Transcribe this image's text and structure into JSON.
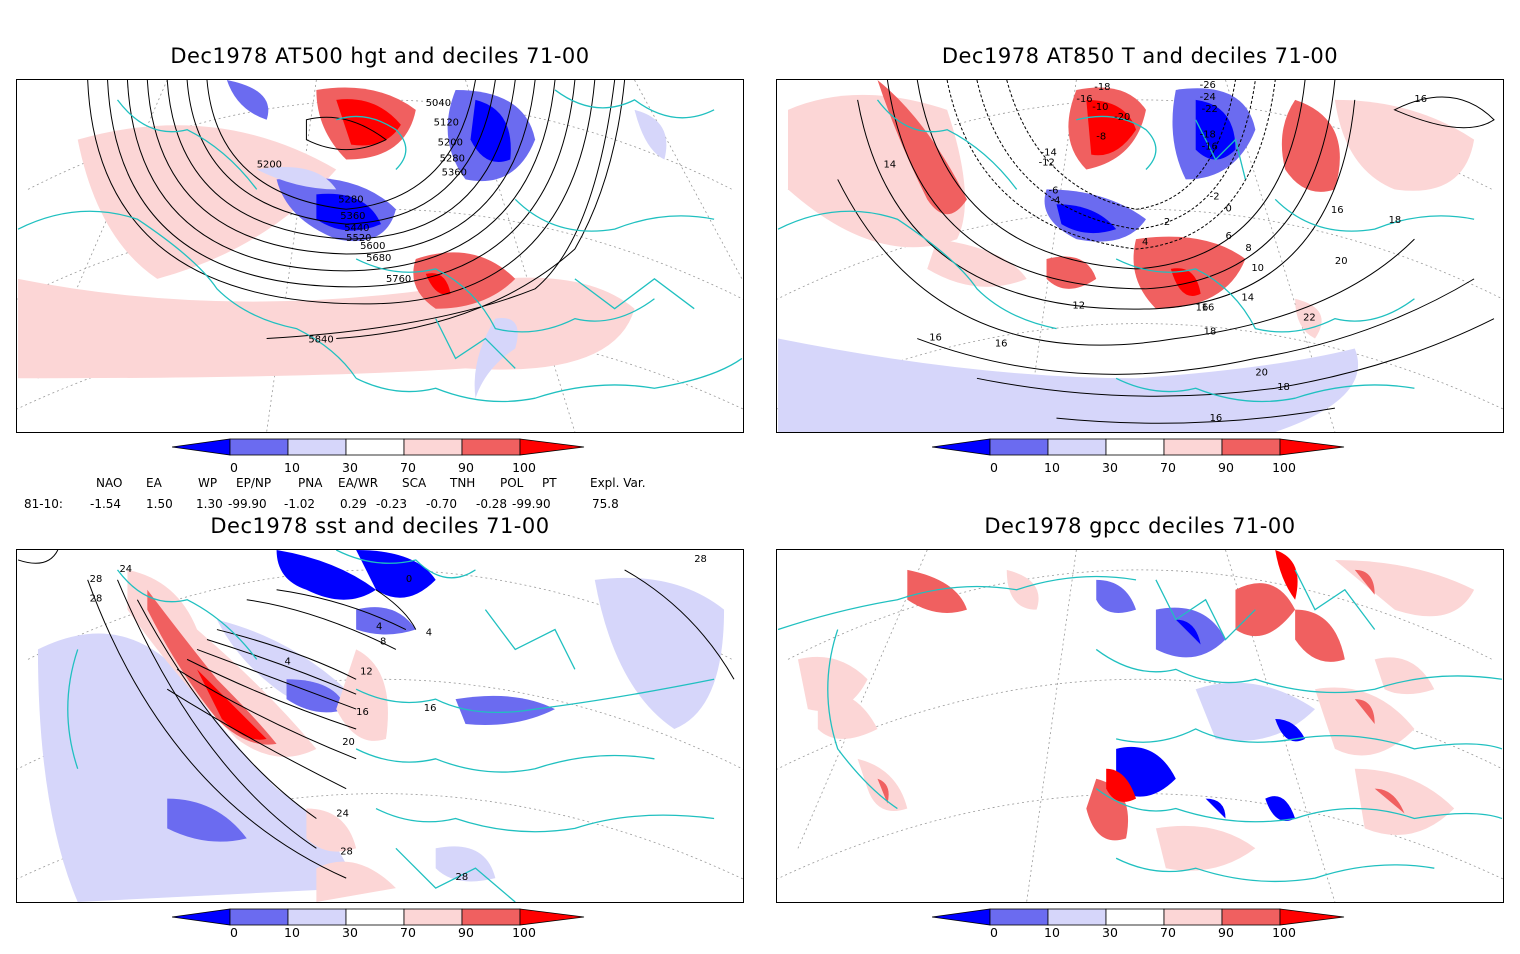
{
  "panels": [
    {
      "id": "p1",
      "title": "Dec1978 AT500 hgt and deciles 71-00",
      "contour_labels": [
        "5040",
        "5120",
        "5200",
        "5280",
        "5360",
        "5200",
        "5280",
        "5360",
        "5440",
        "5520",
        "5600",
        "5680",
        "5760",
        "5840"
      ]
    },
    {
      "id": "p2",
      "title": "Dec1978 AT850 T and deciles 71-00",
      "contour_labels": [
        "-18",
        "-16",
        "-10",
        "-20",
        "-26",
        "-24",
        "-22",
        "-18",
        "-16",
        "-14",
        "-12",
        "-8",
        "-6",
        "-4",
        "2",
        "4",
        "6",
        "8",
        "10",
        "12",
        "14",
        "16",
        "16",
        "18",
        "20",
        "22",
        "16",
        "18",
        "16",
        "14",
        "16",
        "16",
        "20",
        "18",
        "16",
        "-2",
        "0"
      ]
    },
    {
      "id": "p3",
      "title": "Dec1978 sst and deciles 71-00",
      "contour_labels": [
        "28",
        "24",
        "28",
        "0",
        "4",
        "4",
        "8",
        "12",
        "16",
        "16",
        "20",
        "24",
        "28",
        "28",
        "28",
        "4"
      ]
    },
    {
      "id": "p4",
      "title": "Dec1978 gpcc deciles 71-00",
      "contour_labels": []
    }
  ],
  "colorbar": {
    "ticks": [
      "0",
      "10",
      "30",
      "70",
      "90",
      "100"
    ],
    "colors": [
      "#0000ff",
      "#6b6bf0",
      "#d6d6fa",
      "#ffffff",
      "#fcd6d6",
      "#f06060",
      "#ff0000"
    ]
  },
  "indices": {
    "headers": [
      "NAO",
      "EA",
      "WP",
      "EP/NP",
      "PNA",
      "EA/WR",
      "SCA",
      "TNH",
      "POL",
      "PT",
      "Expl. Var."
    ],
    "row_label": "81-10:",
    "values": [
      "-1.54",
      "1.50",
      "1.30",
      "-99.90",
      "-1.02",
      "0.29",
      "-0.23",
      "-0.70",
      "-0.28",
      "-99.90",
      "75.8"
    ]
  }
}
